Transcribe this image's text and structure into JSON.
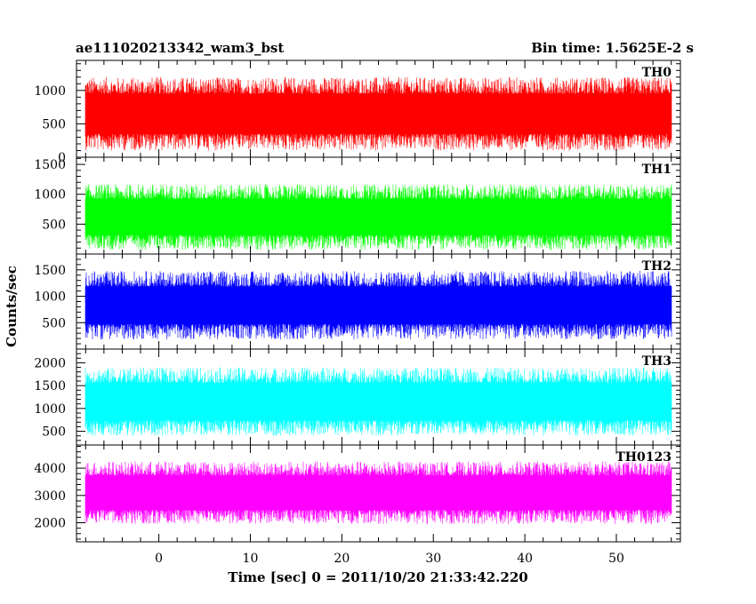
{
  "chart_data": {
    "type": "line",
    "title_left": "ae111020213342_wam3_bst",
    "title_right": "Bin time: 1.5625E-2 s",
    "xlabel": "Time [sec] 0 = 2011/10/20 21:33:42.220",
    "ylabel": "Counts/sec",
    "xlim": [
      -9,
      57
    ],
    "x_ticks": [
      0,
      10,
      20,
      30,
      40,
      50
    ],
    "series_x_range": [
      -8.0,
      56.0
    ],
    "panels": [
      {
        "label": "TH0",
        "color": "#ff0000",
        "ylim": [
          0,
          1450
        ],
        "y_ticks": [
          0,
          500,
          1000
        ],
        "baseline": 650,
        "spread": 550,
        "min_clip": 0,
        "max_clip": 1450
      },
      {
        "label": "TH1",
        "color": "#00ff00",
        "ylim": [
          0,
          1620
        ],
        "y_ticks": [
          500,
          1000,
          1500
        ],
        "baseline": 620,
        "spread": 550,
        "min_clip": 0,
        "max_clip": 1620
      },
      {
        "label": "TH2",
        "color": "#0000ff",
        "ylim": [
          0,
          1800
        ],
        "y_ticks": [
          500,
          1000,
          1500
        ],
        "baseline": 830,
        "spread": 650,
        "min_clip": 0,
        "max_clip": 1800
      },
      {
        "label": "TH3",
        "color": "#00ffff",
        "ylim": [
          200,
          2300
        ],
        "y_ticks": [
          500,
          1000,
          1500,
          2000
        ],
        "baseline": 1150,
        "spread": 750,
        "min_clip": 200,
        "max_clip": 2300
      },
      {
        "label": "TH0123",
        "color": "#ff00ff",
        "ylim": [
          1300,
          4850
        ],
        "y_ticks": [
          2000,
          3000,
          4000
        ],
        "baseline": 3100,
        "spread": 1150,
        "min_clip": 1300,
        "max_clip": 4850
      }
    ]
  }
}
